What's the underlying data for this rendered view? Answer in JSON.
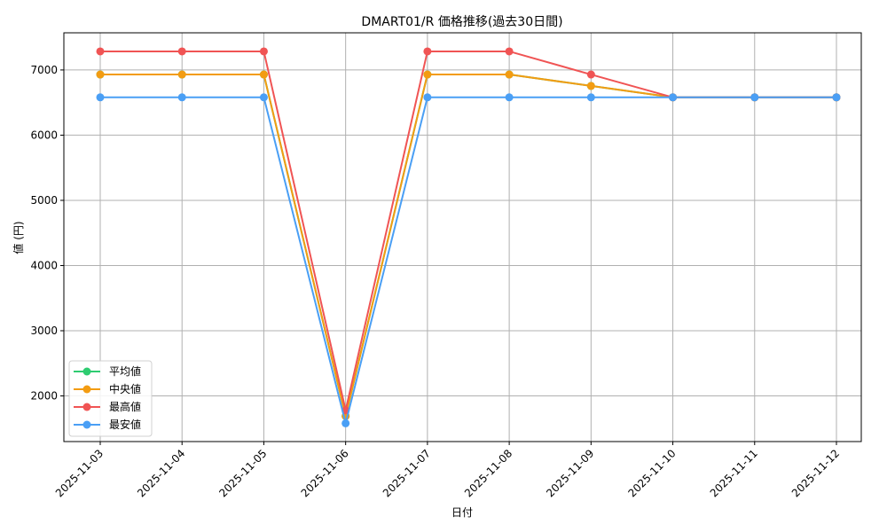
{
  "chart_data": {
    "type": "line",
    "title": "DMART01/R 価格推移(過去30日間)",
    "xlabel": "日付",
    "ylabel": "値 (円)",
    "ylim": [
      1300,
      7570
    ],
    "yticks": [
      2000,
      3000,
      4000,
      5000,
      6000,
      7000
    ],
    "grid": true,
    "legend_position": "lower left",
    "categories": [
      "2025-11-03",
      "2025-11-04",
      "2025-11-05",
      "2025-11-06",
      "2025-11-07",
      "2025-11-08",
      "2025-11-09",
      "2025-11-10",
      "2025-11-11",
      "2025-11-12"
    ],
    "series": [
      {
        "name": "平均値",
        "color": "#2ecc71",
        "values": [
          6930,
          6930,
          6930,
          1690,
          6930,
          6930,
          6755,
          6580,
          6580,
          6580
        ]
      },
      {
        "name": "中央値",
        "color": "#f39c12",
        "values": [
          6930,
          6930,
          6930,
          1690,
          6930,
          6930,
          6755,
          6580,
          6580,
          6580
        ]
      },
      {
        "name": "最高値",
        "color": "#f05454",
        "values": [
          7285,
          7285,
          7285,
          1780,
          7285,
          7285,
          6930,
          6580,
          6580,
          6580
        ]
      },
      {
        "name": "最安値",
        "color": "#4a9ff5",
        "values": [
          6580,
          6580,
          6580,
          1580,
          6580,
          6580,
          6580,
          6580,
          6580,
          6580
        ]
      }
    ]
  }
}
